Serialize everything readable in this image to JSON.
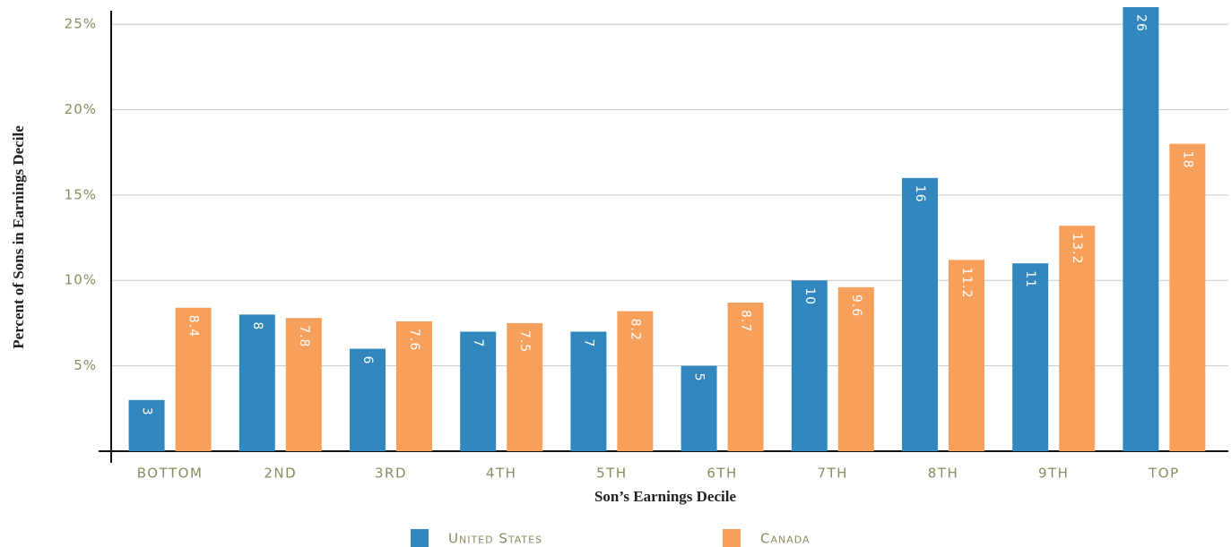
{
  "chart_data": {
    "type": "bar",
    "categories": [
      "BOTTOM",
      "2ND",
      "3RD",
      "4TH",
      "5TH",
      "6TH",
      "7TH",
      "8TH",
      "9TH",
      "TOP"
    ],
    "series": [
      {
        "name": "United States",
        "color": "#3187be",
        "values": [
          3,
          8,
          6,
          7,
          7,
          5,
          10,
          16,
          11,
          26
        ]
      },
      {
        "name": "Canada",
        "color": "#f7a05c",
        "values": [
          8.4,
          7.8,
          7.6,
          7.5,
          8.2,
          8.7,
          9.6,
          11.2,
          13.2,
          18
        ]
      }
    ],
    "xlabel": "Son’s Earnings Decile",
    "ylabel": "Percent of Sons in Earnings Decile",
    "ylim": [
      0,
      26
    ],
    "yticks": [
      {
        "value": 5,
        "label": "5%"
      },
      {
        "value": 10,
        "label": "10%"
      },
      {
        "value": 15,
        "label": "15%"
      },
      {
        "value": 20,
        "label": "20%"
      },
      {
        "value": 25,
        "label": "25%"
      }
    ],
    "grid": true,
    "legend": "bottom"
  }
}
